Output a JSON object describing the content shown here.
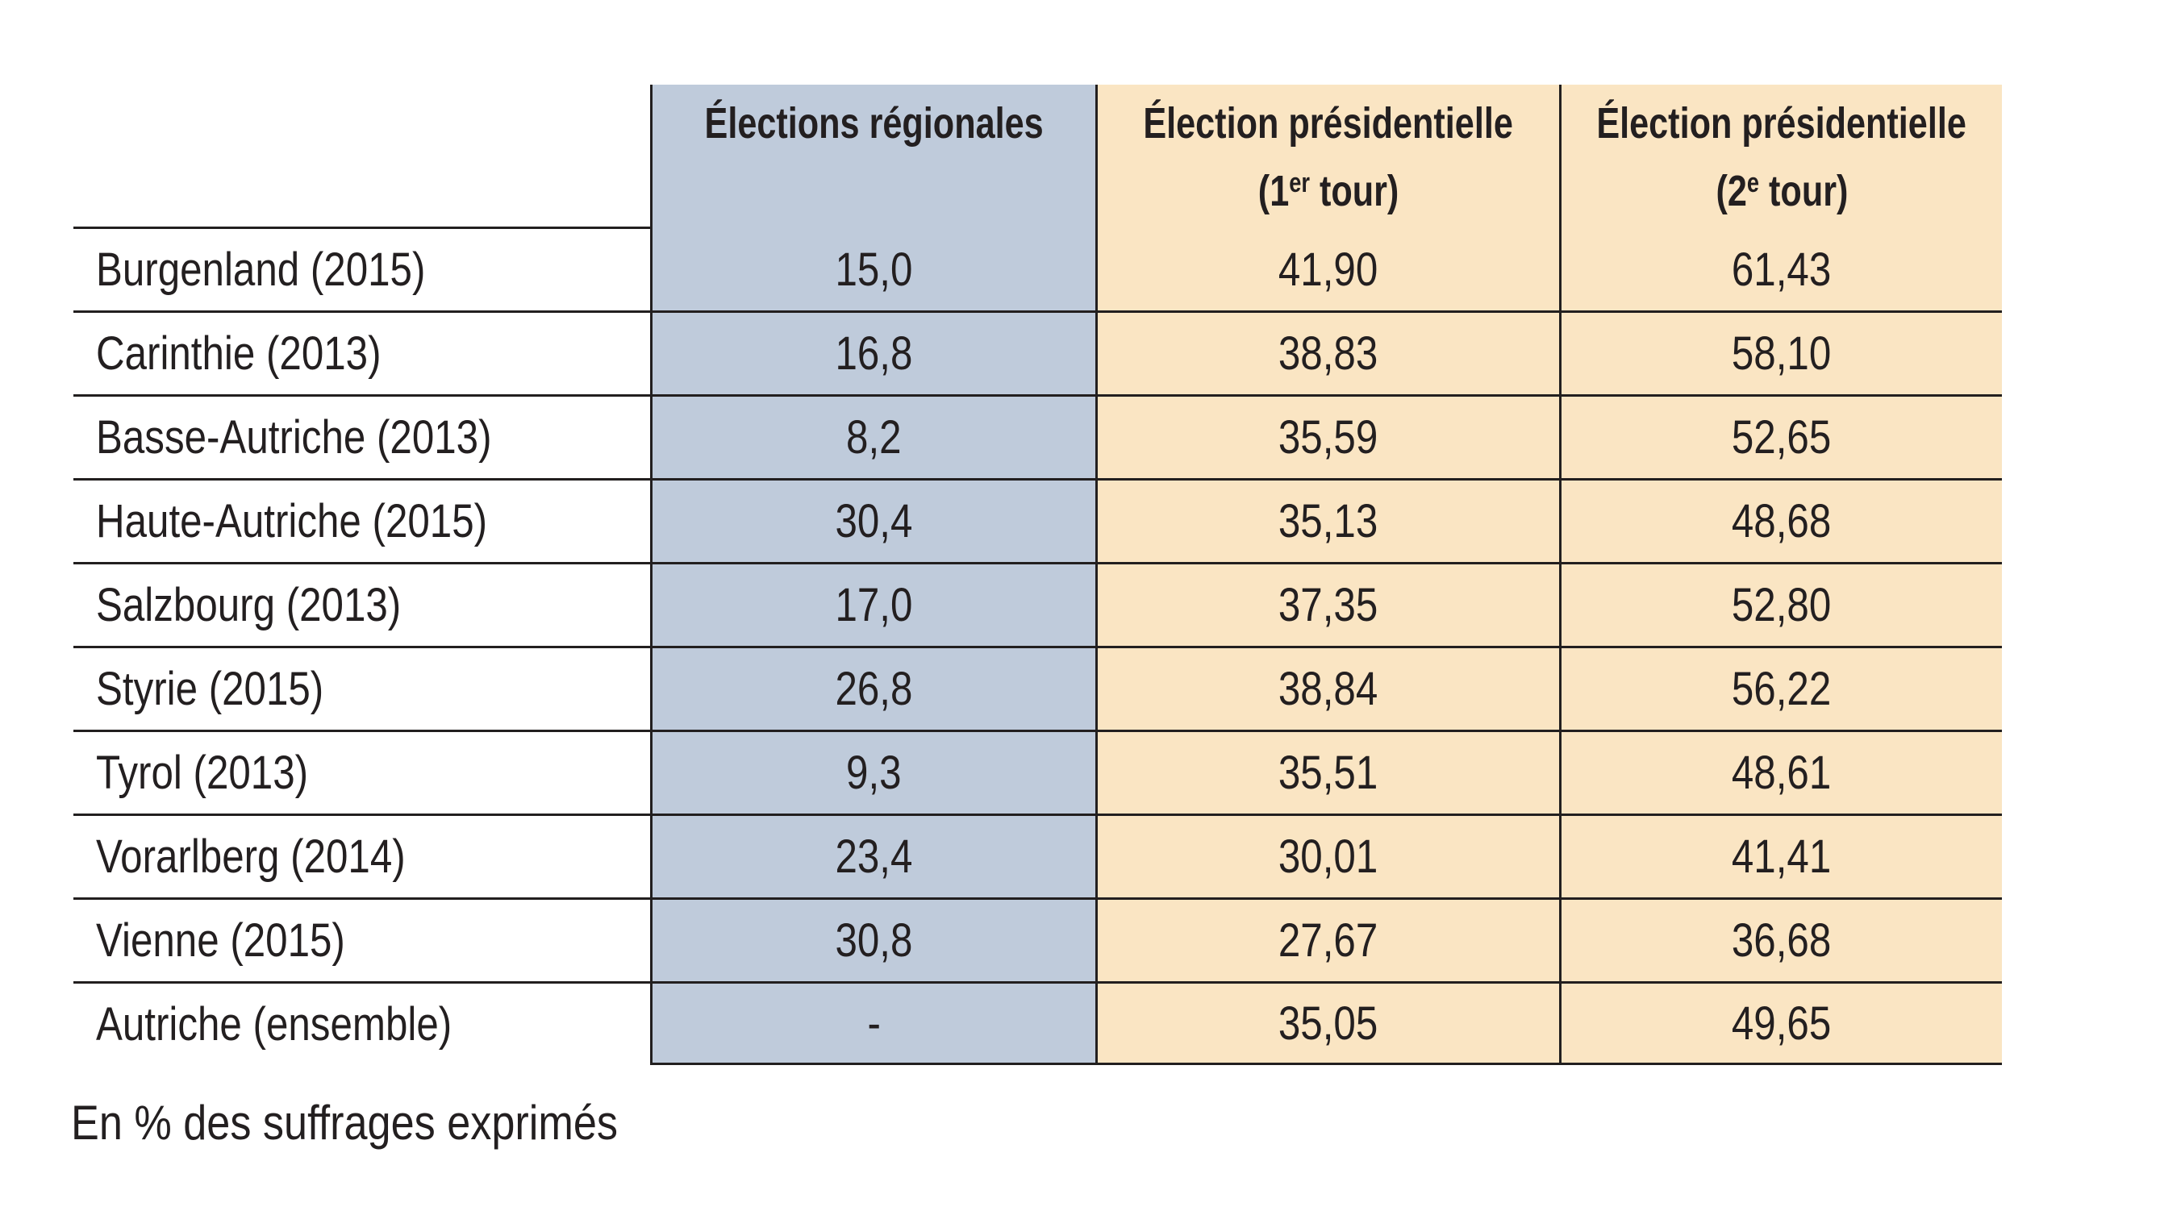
{
  "colors": {
    "regional_column": "#bfcbdb",
    "presidential_column": "#fae5c3",
    "rule_line": "#221f1f",
    "text": "#231f20",
    "background": "#ffffff"
  },
  "table": {
    "header": {
      "col_regional": "Élections régionales",
      "col_pres1_line1": "Élection présidentielle",
      "col_pres1_open": "(1",
      "col_pres1_sup": "er",
      "col_pres1_close": " tour)",
      "col_pres2_line1": "Élection présidentielle",
      "col_pres2_open": "(2",
      "col_pres2_sup": "e",
      "col_pres2_close": " tour)"
    },
    "rows": [
      {
        "label": "Burgenland (2015)",
        "regional": "15,0",
        "pres1": "41,90",
        "pres2": "61,43"
      },
      {
        "label": "Carinthie (2013)",
        "regional": "16,8",
        "pres1": "38,83",
        "pres2": "58,10"
      },
      {
        "label": "Basse-Autriche (2013)",
        "regional": "8,2",
        "pres1": "35,59",
        "pres2": "52,65"
      },
      {
        "label": "Haute-Autriche (2015)",
        "regional": "30,4",
        "pres1": "35,13",
        "pres2": "48,68"
      },
      {
        "label": "Salzbourg (2013)",
        "regional": "17,0",
        "pres1": "37,35",
        "pres2": "52,80"
      },
      {
        "label": "Styrie (2015)",
        "regional": "26,8",
        "pres1": "38,84",
        "pres2": "56,22"
      },
      {
        "label": "Tyrol (2013)",
        "regional": "9,3",
        "pres1": "35,51",
        "pres2": "48,61"
      },
      {
        "label": "Vorarlberg (2014)",
        "regional": "23,4",
        "pres1": "30,01",
        "pres2": "41,41"
      },
      {
        "label": "Vienne (2015)",
        "regional": "30,8",
        "pres1": "27,67",
        "pres2": "36,68"
      },
      {
        "label": "Autriche (ensemble)",
        "regional": "-",
        "pres1": "35,05",
        "pres2": "49,65"
      }
    ],
    "footnote": "En % des suffrages exprimés"
  },
  "chart_data": {
    "type": "table",
    "note": "En % des suffrages exprimés",
    "unit": "% des suffrages exprimés",
    "columns": [
      "Élections régionales",
      "Élection présidentielle (1er tour)",
      "Élection présidentielle (2e tour)"
    ],
    "rows": [
      "Burgenland (2015)",
      "Carinthie (2013)",
      "Basse-Autriche (2013)",
      "Haute-Autriche (2015)",
      "Salzbourg (2013)",
      "Styrie (2015)",
      "Tyrol (2013)",
      "Vorarlberg (2014)",
      "Vienne (2015)",
      "Autriche (ensemble)"
    ],
    "series": [
      {
        "name": "Élections régionales",
        "values": [
          15.0,
          16.8,
          8.2,
          30.4,
          17.0,
          26.8,
          9.3,
          23.4,
          30.8,
          null
        ]
      },
      {
        "name": "Élection présidentielle (1er tour)",
        "values": [
          41.9,
          38.83,
          35.59,
          35.13,
          37.35,
          38.84,
          35.51,
          30.01,
          27.67,
          35.05
        ]
      },
      {
        "name": "Élection présidentielle (2e tour)",
        "values": [
          61.43,
          58.1,
          52.65,
          48.68,
          52.8,
          56.22,
          48.61,
          41.41,
          36.68,
          49.65
        ]
      }
    ]
  }
}
